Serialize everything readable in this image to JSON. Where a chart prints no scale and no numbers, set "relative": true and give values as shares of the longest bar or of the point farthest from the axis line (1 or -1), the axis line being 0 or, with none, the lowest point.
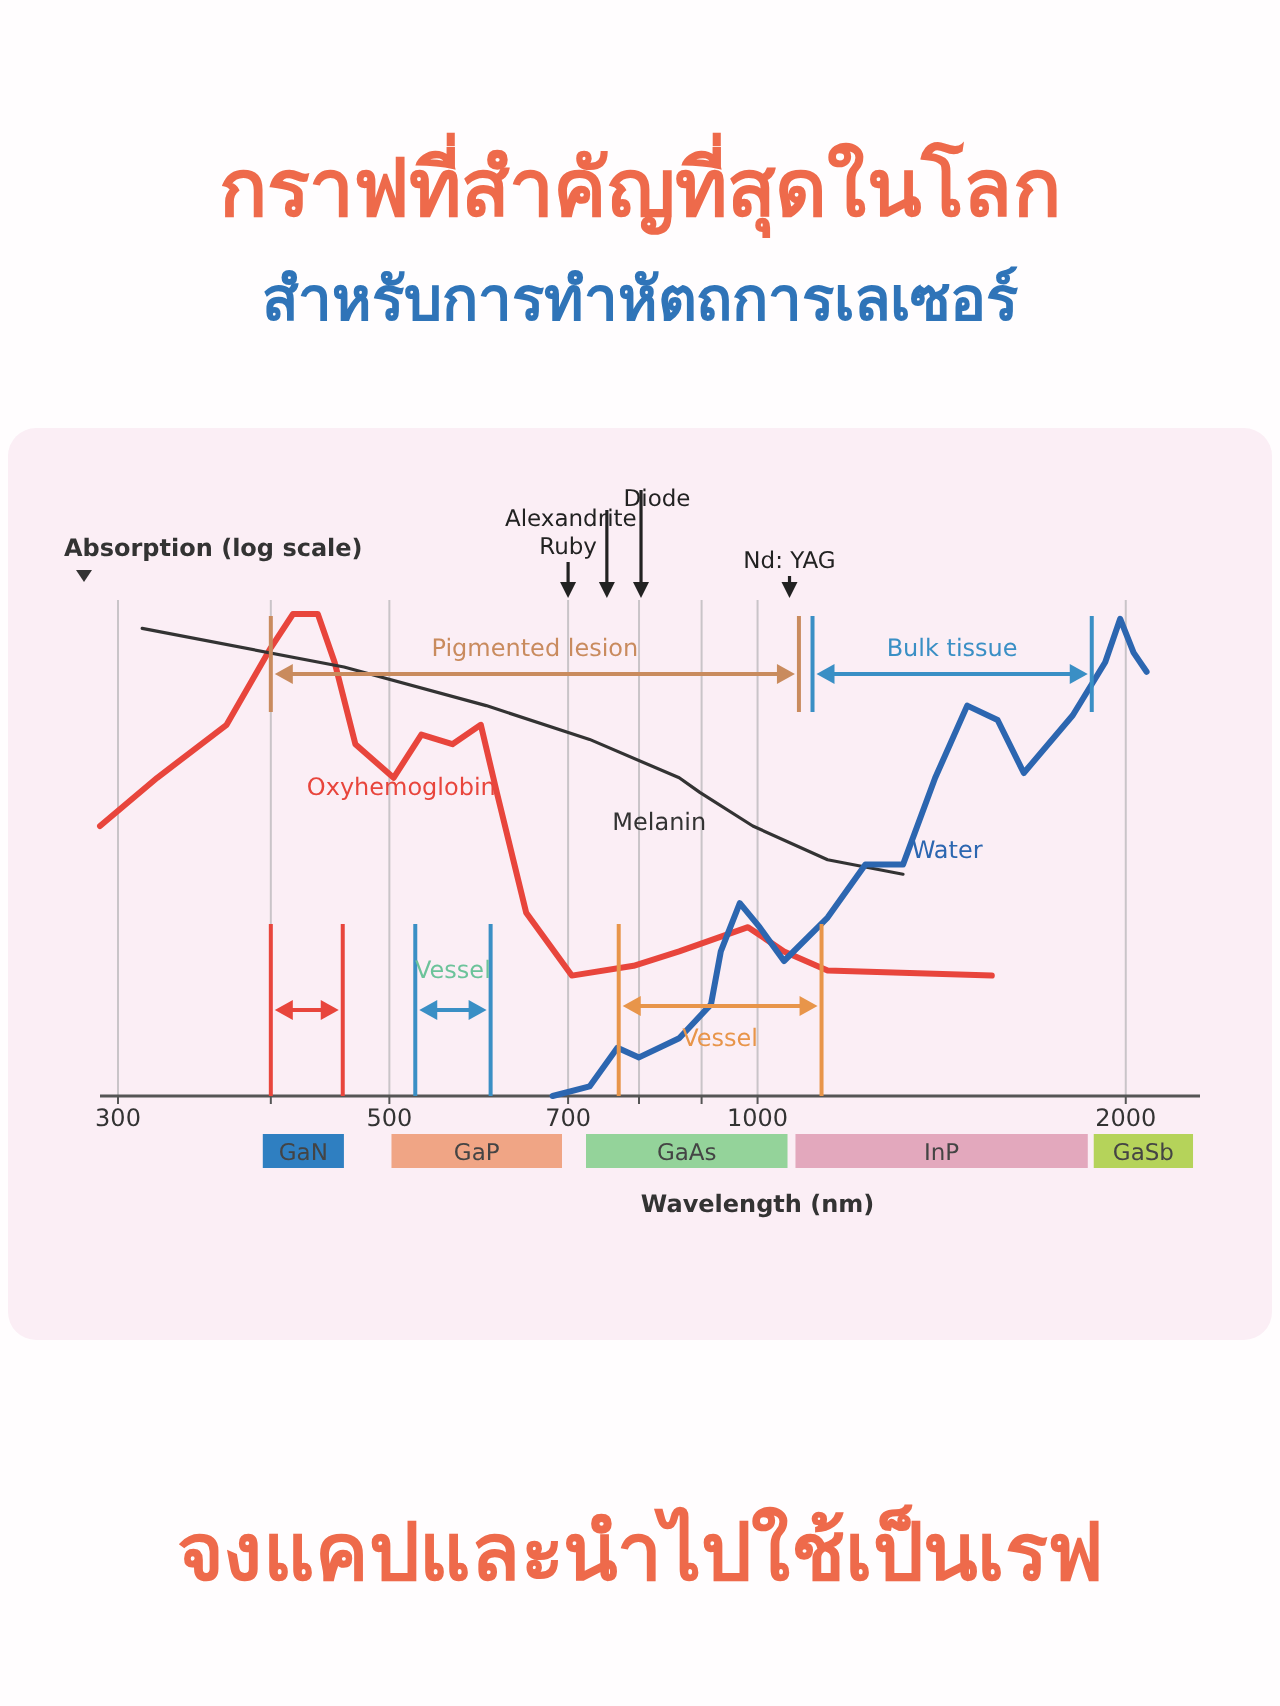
{
  "chart_data": {
    "type": "line",
    "title": "กราฟที่สำคัญที่สุดในโลก",
    "subtitle": "สำหรับการทำหัตถการเลเซอร์",
    "xlabel": "Wavelength (nm)",
    "ylabel": "Absorption (log scale)",
    "relative": true,
    "log": "x",
    "grid": "x",
    "legend": false,
    "marker": "none",
    "xlim": [
      290,
      2300
    ],
    "xticks": [
      300,
      {
        "value": 400,
        "label": null
      },
      500,
      700,
      {
        "value": 800,
        "label": null
      },
      {
        "value": 900,
        "label": null
      },
      1000,
      2000
    ],
    "series": [
      {
        "name": "Oxyhemoglobin",
        "color": "#e8453c",
        "x": [
          290,
          323,
          368,
          400,
          417,
          437,
          451,
          469,
          504,
          531,
          563,
          594,
          612,
          647,
          705,
          792,
          863,
          982,
          1051,
          1141,
          1554
        ],
        "values": [
          0.56,
          0.66,
          0.77,
          0.93,
          1.0,
          1.0,
          0.9,
          0.73,
          0.66,
          0.75,
          0.73,
          0.77,
          0.63,
          0.38,
          0.25,
          0.27,
          0.3,
          0.35,
          0.3,
          0.26,
          0.25
        ]
      },
      {
        "name": "Melanin",
        "color": "#333333",
        "x": [
          314,
          459,
          600,
          729,
          863,
          897,
          991,
          1141,
          1315
        ],
        "values": [
          0.97,
          0.89,
          0.81,
          0.74,
          0.66,
          0.63,
          0.56,
          0.49,
          0.46
        ]
      },
      {
        "name": "Water",
        "color": "#2c66b0",
        "x": [
          680,
          729,
          768,
          800,
          863,
          916,
          933,
          967,
          1004,
          1051,
          1141,
          1225,
          1315,
          1397,
          1484,
          1571,
          1651,
          1810,
          1924,
          1979,
          2030,
          2080
        ],
        "values": [
          0,
          0.02,
          0.1,
          0.08,
          0.12,
          0.19,
          0.3,
          0.4,
          0.35,
          0.28,
          0.37,
          0.48,
          0.48,
          0.66,
          0.81,
          0.78,
          0.67,
          0.79,
          0.9,
          0.99,
          0.92,
          0.88
        ]
      }
    ],
    "annotations": [
      "Ruby",
      "Alexandrite",
      "Diode",
      "Nd: YAG",
      "Pigmented lesion",
      "Bulk tissue",
      "Vessel",
      "Vessel",
      "GaN",
      "GaP",
      "GaAs",
      "InP",
      "GaSb",
      "จงแคปและนำไปใช้เป็นเรฟ"
    ]
  }
}
